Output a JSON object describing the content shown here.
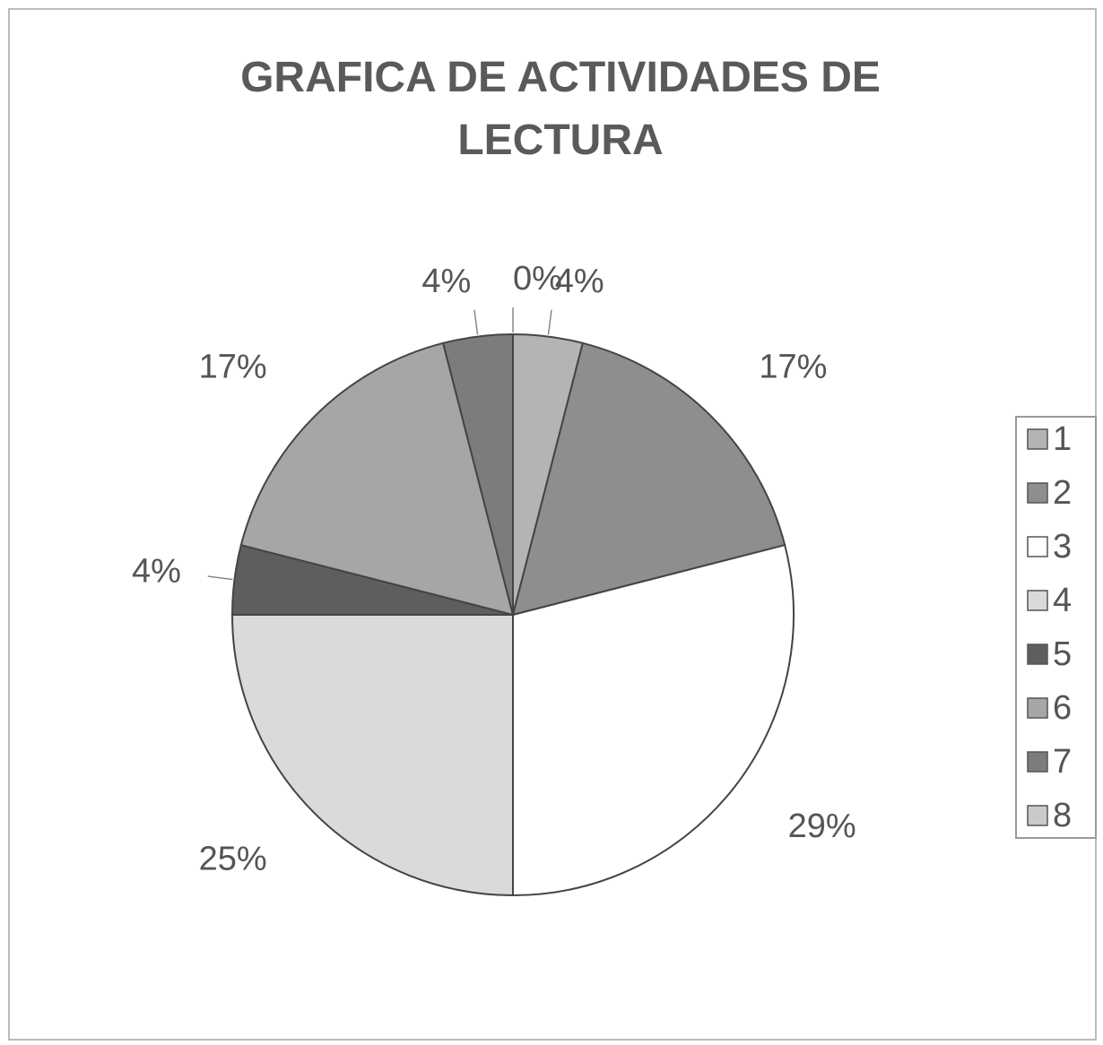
{
  "chart_data": {
    "type": "pie",
    "title": "GRAFICA DE ACTIVIDADES DE LECTURA",
    "categories": [
      "1",
      "2",
      "3",
      "4",
      "5",
      "6",
      "7",
      "8"
    ],
    "values": [
      4,
      17,
      29,
      25,
      4,
      17,
      4,
      0
    ],
    "value_labels": [
      "4%",
      "17%",
      "29%",
      "25%",
      "4%",
      "17%",
      "4%",
      "0%"
    ],
    "colors": [
      "#b4b4b4",
      "#8e8e8e",
      "#ffffff",
      "#dadada",
      "#5e5e5e",
      "#a6a6a6",
      "#7c7c7c",
      "#cacaca"
    ],
    "legend": "right"
  }
}
